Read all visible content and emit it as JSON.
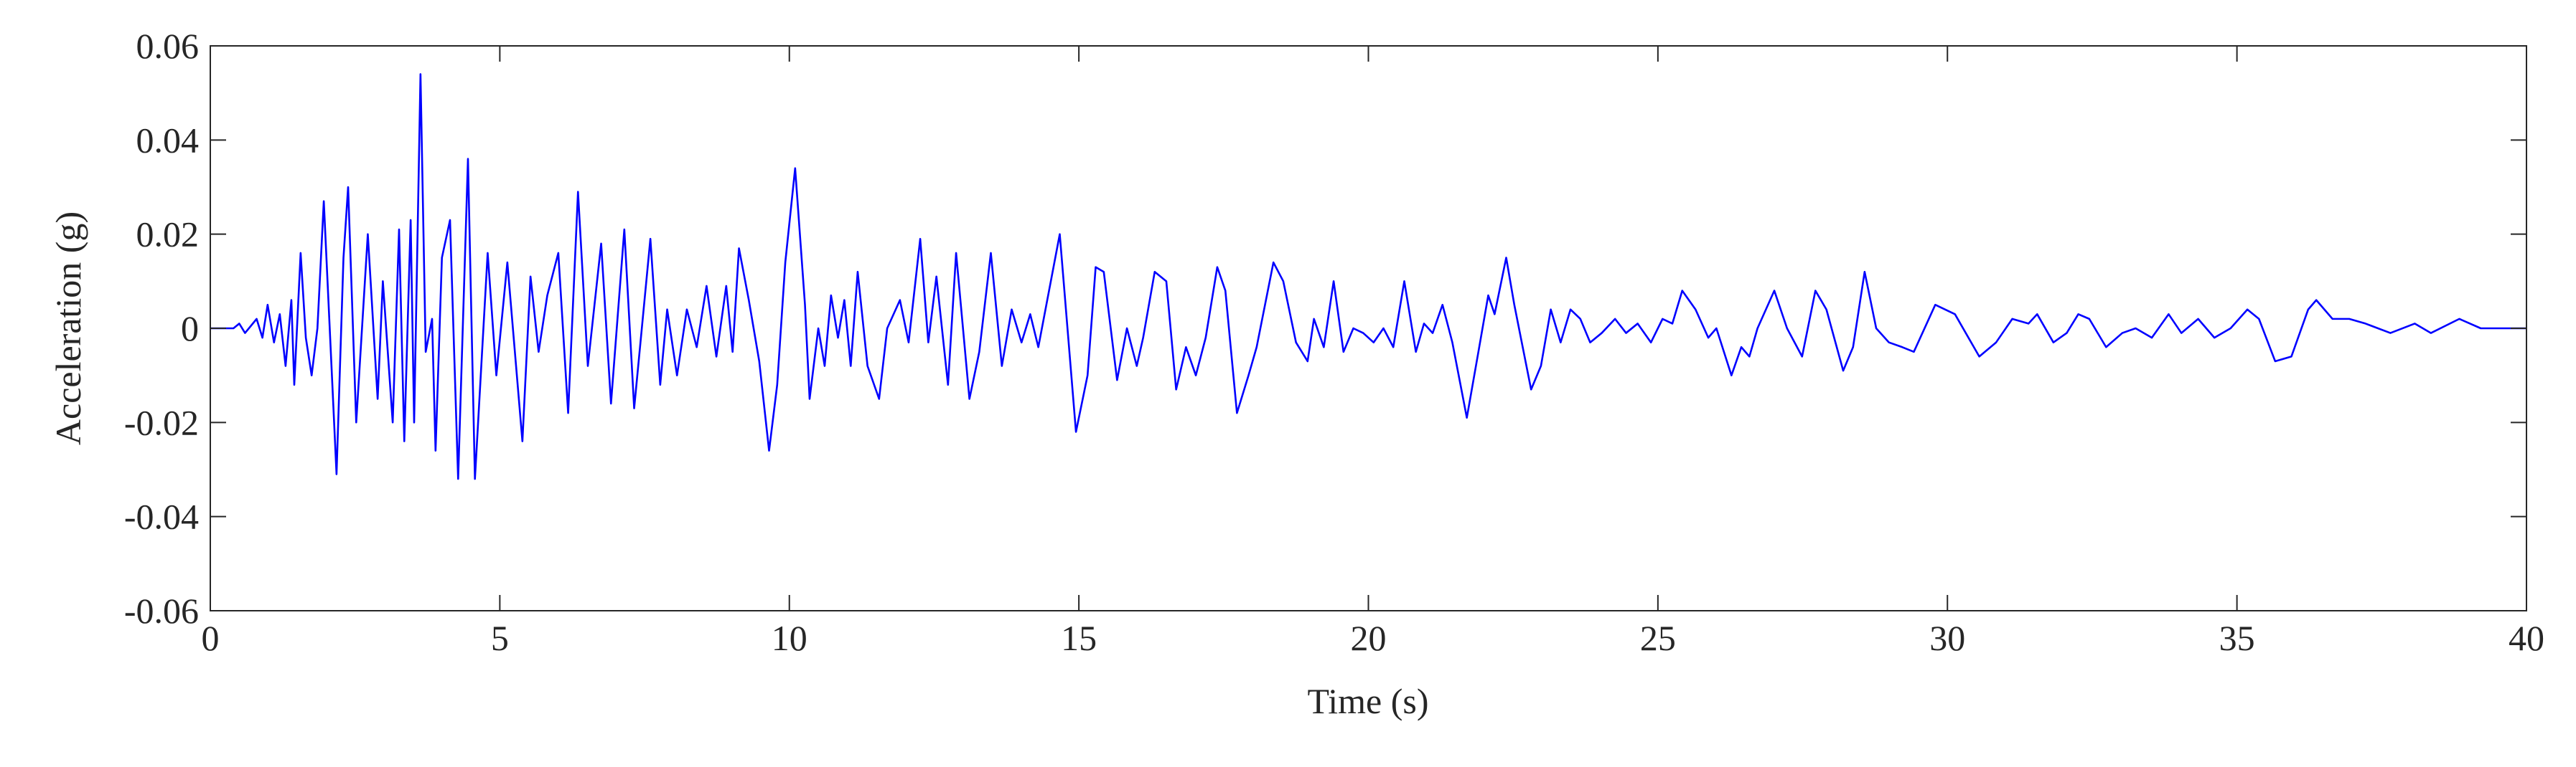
{
  "chart_data": {
    "type": "line",
    "xlabel": "Time (s)",
    "ylabel": "Acceleration (g)",
    "color": "#0000ff",
    "box": true,
    "xlim": [
      0,
      40
    ],
    "xticks": [
      0,
      5,
      10,
      15,
      20,
      25,
      30,
      35,
      40
    ],
    "ylim": [
      -0.06,
      0.06
    ],
    "yticks": [
      -0.06,
      -0.04,
      -0.02,
      0,
      0.02,
      0.04,
      0.06
    ],
    "x": [
      0,
      0.4,
      0.5,
      0.6,
      0.8,
      0.9,
      0.99,
      1.1,
      1.2,
      1.3,
      1.4,
      1.45,
      1.56,
      1.65,
      1.75,
      1.85,
      1.96,
      2.18,
      2.3,
      2.38,
      2.52,
      2.72,
      2.89,
      2.98,
      3.15,
      3.26,
      3.35,
      3.46,
      3.52,
      3.63,
      3.72,
      3.83,
      3.89,
      4.0,
      4.14,
      4.28,
      4.45,
      4.57,
      4.79,
      4.94,
      5.13,
      5.39,
      5.53,
      5.67,
      5.82,
      6.01,
      6.18,
      6.35,
      6.52,
      6.75,
      6.92,
      7.15,
      7.32,
      7.6,
      7.77,
      7.89,
      8.06,
      8.23,
      8.4,
      8.57,
      8.74,
      8.91,
      9.02,
      9.13,
      9.3,
      9.48,
      9.65,
      9.79,
      9.93,
      10.1,
      10.27,
      10.35,
      10.5,
      10.61,
      10.72,
      10.84,
      10.95,
      11.06,
      11.18,
      11.35,
      11.55,
      11.69,
      11.91,
      12.06,
      12.26,
      12.4,
      12.54,
      12.74,
      12.88,
      13.11,
      13.28,
      13.48,
      13.67,
      13.84,
      14.01,
      14.16,
      14.3,
      14.67,
      14.95,
      15.15,
      15.29,
      15.43,
      15.66,
      15.83,
      16.0,
      16.11,
      16.31,
      16.51,
      16.68,
      16.85,
      17.02,
      17.19,
      17.39,
      17.53,
      17.73,
      17.93,
      18.07,
      18.36,
      18.53,
      18.75,
      18.95,
      19.06,
      19.23,
      19.4,
      19.57,
      19.74,
      19.91,
      20.09,
      20.26,
      20.43,
      20.62,
      20.82,
      20.96,
      21.11,
      21.28,
      21.45,
      21.7,
      21.9,
      22.07,
      22.18,
      22.38,
      22.52,
      22.81,
      22.98,
      23.15,
      23.32,
      23.49,
      23.66,
      23.83,
      24.03,
      24.26,
      24.45,
      24.65,
      24.88,
      25.08,
      25.25,
      25.42,
      25.65,
      25.87,
      26.01,
      26.27,
      26.44,
      26.58,
      26.72,
      27.01,
      27.23,
      27.49,
      27.72,
      27.91,
      28.2,
      28.37,
      28.57,
      28.77,
      28.99,
      29.22,
      29.42,
      29.79,
      30.13,
      30.55,
      30.84,
      31.12,
      31.4,
      31.55,
      31.83,
      32.06,
      32.26,
      32.45,
      32.74,
      33.02,
      33.25,
      33.53,
      33.82,
      34.04,
      34.33,
      34.61,
      34.89,
      35.18,
      35.38,
      35.66,
      35.94,
      36.23,
      36.37,
      36.65,
      36.94,
      37.22,
      37.65,
      38.07,
      38.35,
      38.84,
      39.21,
      40
    ],
    "values": [
      0,
      0,
      0.001,
      -0.001,
      0.002,
      -0.002,
      0.005,
      -0.003,
      0.003,
      -0.008,
      0.006,
      -0.012,
      0.016,
      -0.002,
      -0.01,
      0.0,
      0.027,
      -0.031,
      0.015,
      0.03,
      -0.02,
      0.02,
      -0.015,
      0.01,
      -0.02,
      0.021,
      -0.024,
      0.023,
      -0.02,
      0.054,
      -0.005,
      0.002,
      -0.026,
      0.015,
      0.023,
      -0.032,
      0.036,
      -0.032,
      0.016,
      -0.01,
      0.014,
      -0.024,
      0.011,
      -0.005,
      0.007,
      0.016,
      -0.018,
      0.029,
      -0.008,
      0.018,
      -0.016,
      0.021,
      -0.017,
      0.019,
      -0.012,
      0.004,
      -0.01,
      0.004,
      -0.004,
      0.009,
      -0.006,
      0.009,
      -0.005,
      0.017,
      0.006,
      -0.007,
      -0.026,
      -0.012,
      0.014,
      0.034,
      0.005,
      -0.015,
      0.0,
      -0.008,
      0.007,
      -0.002,
      0.006,
      -0.008,
      0.012,
      -0.008,
      -0.015,
      0.0,
      0.006,
      -0.003,
      0.019,
      -0.003,
      0.011,
      -0.012,
      0.016,
      -0.015,
      -0.005,
      0.016,
      -0.008,
      0.004,
      -0.003,
      0.003,
      -0.004,
      0.02,
      -0.022,
      -0.01,
      0.013,
      0.012,
      -0.011,
      0.0,
      -0.008,
      -0.002,
      0.012,
      0.01,
      -0.013,
      -0.004,
      -0.01,
      -0.002,
      0.013,
      0.008,
      -0.018,
      -0.01,
      -0.004,
      0.014,
      0.01,
      -0.003,
      -0.007,
      0.002,
      -0.004,
      0.01,
      -0.005,
      0.0,
      -0.001,
      -0.003,
      0.0,
      -0.004,
      0.01,
      -0.005,
      0.001,
      -0.001,
      0.005,
      -0.003,
      -0.019,
      -0.005,
      0.007,
      0.003,
      0.015,
      0.005,
      -0.013,
      -0.008,
      0.004,
      -0.003,
      0.004,
      0.002,
      -0.003,
      -0.001,
      0.002,
      -0.001,
      0.001,
      -0.003,
      0.002,
      0.001,
      0.008,
      0.004,
      -0.002,
      0.0,
      -0.01,
      -0.004,
      -0.006,
      0.0,
      0.008,
      0.0,
      -0.006,
      0.008,
      0.004,
      -0.009,
      -0.004,
      0.012,
      0.0,
      -0.003,
      -0.004,
      -0.005,
      0.005,
      0.003,
      -0.006,
      -0.003,
      0.002,
      0.001,
      0.003,
      -0.003,
      -0.001,
      0.003,
      0.002,
      -0.004,
      -0.001,
      0.0,
      -0.002,
      0.003,
      -0.001,
      0.002,
      -0.002,
      0.0,
      0.004,
      0.002,
      -0.007,
      -0.006,
      0.004,
      0.006,
      0.002,
      0.002,
      0.001,
      -0.001,
      0.001,
      -0.001,
      0.002,
      0.0,
      0
    ]
  }
}
